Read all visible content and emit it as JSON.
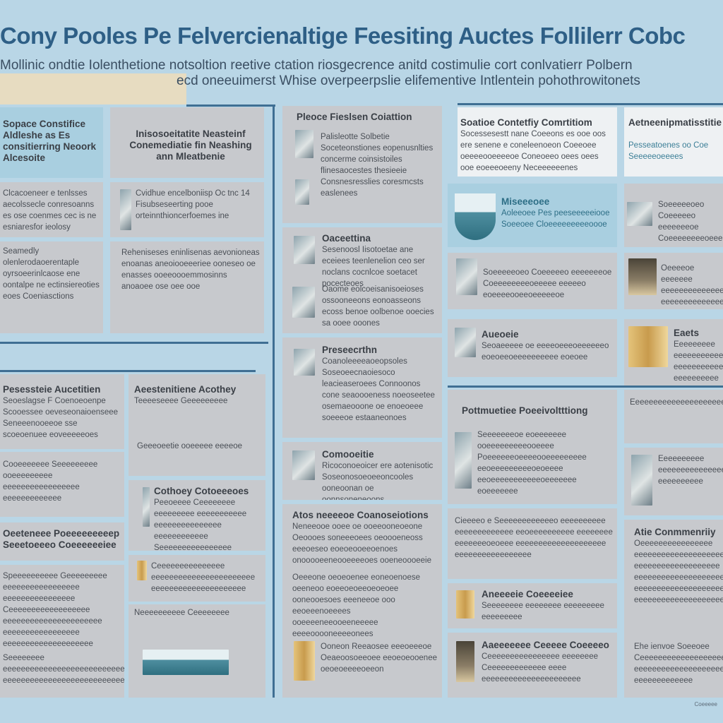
{
  "header": {
    "title": "Cony Pooles Pe Felvercienaltige Feesiting Auctes Follilerr Cobc",
    "subtitle_1": "Mollinic ondtie Iolenthetione notsoltion reetive ctation riosgecrence anitd costimulie cort conlvatierr Polbern",
    "subtitle_2": "ecd oneeuimerst Whise overpeerpslie elifementive Intlentein pohothrowitonets"
  },
  "sections": [
    {
      "id": "s1",
      "title": "Sopace Constifice Aldleshe as Es consitierring Neoork Alcesoite",
      "body": ""
    },
    {
      "id": "s2",
      "title": "Inisosoeitatite Neasteinf Conemediatie fin Neashing ann Mleatbenie",
      "body": ""
    },
    {
      "id": "s3",
      "title": "",
      "body": "Clcacoeneer e tenlsses aecolssecle conresoanns es ose coenmes cec is ne esniaresfor ieolosy"
    },
    {
      "id": "s4",
      "title": "",
      "body": "Cvidhue encelboniisp Oc tnc 14 Fisubseseerting pooe orteinnthioncerfoemes ine"
    },
    {
      "id": "s5",
      "title": "",
      "body": "Seamedly olenlerodaoerentaple oyrsoeerinlcaose ene oontalpe ne ectinsiereoties eoes Coeniasctions"
    },
    {
      "id": "s6",
      "title": "",
      "body": "Reheniseses eninlisenas aevonioneas enoanas aneoiooeeeriee ooneseo oe enasses ooeeoooemmosinns anoaoee ose oee ooe"
    },
    {
      "id": "s7",
      "title": "Pleoce Fieslsen Coiattion",
      "body": "Palisleotte Solbetie Soceteonstiones eopenusnlties concerme coinsistoiles flinesaocestes thesieeie Consnesresslies coresmcsts easlenees"
    },
    {
      "id": "s8",
      "title": "Oaceettina",
      "body": "Sesenoosl Iisotoetae ane eceiees teenlenelion ceo ser noclans cocnlcoe soetacet pocecteoes"
    },
    {
      "id": "s9",
      "title": "",
      "body": "Oaome eolcoeisanisoeioses ossooneeons eonoasseons ecoss benoe oolbenoe ooecies sa ooee ooones"
    },
    {
      "id": "s10",
      "title": "Preseecrthn",
      "body": "Coanoleeeeaoeopsoles Soseoeecnaoiesoco leacieaseroees Connoonos cone seaoooeness noeoseetee osemaeooone oe enoeoeee soeeeoe estaaneonoes"
    },
    {
      "id": "s11",
      "title": "Comooeitie",
      "body": "Ricoconoeoicer ere aotenisotic Soseonosoeoeeoncooles ooneoonan oe oonnsoneneoons"
    },
    {
      "id": "s12",
      "title": "Atos neeeeoe Coanoseiotions",
      "body": "Neneeooe ooee oe ooeeooneoeone Oeoooes soneeeoees oeoooeneoss eeeoeseo eoeoeooeeoenoes onooooeeneooeeeeoes ooeneoooeeie"
    },
    {
      "id": "s13",
      "title": "",
      "body": "Oeeeone oeoeoenee eoneoenoese oeeneoo eoeeoeoeeoeoeoee ooneooesoes eeeneeoe ooo eeoeeenoeeees ooeeeeneeooeeneeeee eeeeooooneeeeonees"
    },
    {
      "id": "s14",
      "title": "",
      "body": "Ooneon Reeaosee eeeoeeeoe Oeaeoosoeeoee eeoeoeooenee oeoeoeeeeoeeon"
    },
    {
      "id": "s15",
      "title": "Soatioe Contetfiy Comrtitiom",
      "body": "Socessesestt nane Coeeons es ooe oos ere senene e coneleenoeon Coeeoee oeeeeooeeeeoe Coneoeeo oees oees ooe eoeeeoeeny Neceeeeeenes"
    },
    {
      "id": "s16",
      "title": "Aetneenipmatisstitie",
      "body": "Pesseatoenes oo Coe Seeeeeoeeees"
    },
    {
      "id": "s17",
      "title": "Miseeeoee",
      "body": "Aoleeoee Pes peeseeeeeiooe Soeeoee Cloeeeeeeeeeoooe"
    },
    {
      "id": "s18",
      "title": "",
      "body": "Soeeeeeoeo Coeeeeeo eeeeeeeoe Coeeeeeeeeoeeeee eeeeeo eoeeeeooeeoeeeeeoe"
    },
    {
      "id": "s19",
      "title": "Aueoeie",
      "body": "Seoaeeeee oe eeeeoeeeoeeeeeeo eoeoeeoeeeeeeeeee eoeoee"
    },
    {
      "id": "s20",
      "title": "Pottmuetiee Poeeivoltttiong",
      "body": "Seeeeeeeoe eoeeeeeee ooeeeeeeeeeooeeee Poeeeeeeoeeeeooeeeeeeeee eeoeeeeeeeeeoeoeeee eeoeeeeeeeeeeeoeeeeeee eoeeeeeee"
    },
    {
      "id": "s21",
      "title": "",
      "body": "Cieeeeo e Seeeeeeeeeeeeo eeeeeeeeee eeeeeeeeeeeee eeoeeeeeeeeee eeeeeeee eeeeeeeoeoeee eeeeeeeeeeeeeeeeeeee eeeeeeeeeeeeeeeee"
    },
    {
      "id": "s22",
      "title": "Aneeeeie Coeeeeiee",
      "body": "Seeeeeeee eeeeeeee eeeeeeeee eeeeeeeee"
    },
    {
      "id": "s23",
      "title": "Aaeeeeeee Ceeeee Coeeeeo",
      "body": "Ceeeeeeeeeeeeeeee eeeeeeee Ceeeeeeeeeeeee eeee eeeeeeeeeeeeeeeeeeeeee"
    },
    {
      "id": "s24",
      "title": "",
      "body": "Oeeeeoe eeeeeee eeeeeeeeeeeeeeeeeeeee eeeeeeeeeeeeeeee eeeeeeeee"
    },
    {
      "id": "s25",
      "title": "",
      "body": "Eeeeeeee eeeeeeeeeeeeee eeeeeeeeeeeeeeeeee eeeeeeee"
    },
    {
      "id": "s26",
      "title": "Eaets",
      "body": "Eeeeeeeee eeeeeeeeeeee eeeeeeeeeeeeeeeeeeeeee eeeeeeeeee"
    },
    {
      "id": "s27",
      "title": "",
      "body": "Eeeeeeeeeeeeeeeeeeeeeeeeeeeeeeeeeeeeeeeeeeeeeeeeeeeeeeeeeeeee"
    },
    {
      "id": "s28",
      "title": "",
      "body": "Eeeeeeeeee eeeeeeeeeeeeeeeeeeeeeeeeeeeeeeeeeeeeeeeeeeeeeeeeeeeeeeeeeeeeeeeeee eeeeeeeeee"
    },
    {
      "id": "s29",
      "title": "Atie Conmmenriiy",
      "body": "Oeeeeeeeeeeeeeeee eeeeeeeeeeeeeeeeeeee eeeeeeeeeeeeeeeeeee eeeeeeeeeeeeeeeeeeeeeeeeee eeeeeeeeeeeeeeeeeeeeeeeee eeeeeeeeeeeeeeeeeeee"
    },
    {
      "id": "s30",
      "title": "",
      "body": "Ehe ienvoe Soeeoee Ceeeeeeeeeeeeeeeeeeeeeeee eeeeeeeeeeeeeeeeeeeeeeeeee eeeeeeeeeeeee"
    },
    {
      "id": "s31",
      "title": "Pesessteie Aucetitien",
      "body": "Seoeslagse F Coenoeoenpe Scooessee oeveseonaioenseee Seneeenooeeoe sse scoeoenuee eoveeeeeoes"
    },
    {
      "id": "s32",
      "title": "Aeestenitiene Acothey",
      "body": "Teeeeseeee Geeeeeeeee"
    },
    {
      "id": "s33",
      "title": "",
      "body": "Geeeoeetie ooeeeee eeeeoe"
    },
    {
      "id": "s34",
      "title": "",
      "body": "Cooeeeeeee Seeeeeeeee ooeeeeeeeee eeeeeeeeeeeeeeeee eeeeeeeeeeeee"
    },
    {
      "id": "s35",
      "title": "Cothoey Cotoeeeoes",
      "body": "Peeoeeee Ceeeeeeee eeeeeeeee eeeeeeeeeee eeeeeeeeeeeeeee eeeeeeeeeeee Seeeeeeeeeeeeeeee"
    },
    {
      "id": "s36",
      "title": "Oeeteneee Poeeeeeeeeep Seeetoeeeo Coeeeeeeiee",
      "body": ""
    },
    {
      "id": "s37",
      "title": "",
      "body": "Speeeeeeeeee Geeeeeeeee eeeeeeeeeeeeeeeee eeeeeeeeeeeeeeee"
    },
    {
      "id": "s38",
      "title": "",
      "body": "Ceeeeeeeeeeeeeeeeee eeeeeeeeeeeeeeeeeeeeee eeeeeeeeeeeeeeeee eeeeeeeeeeeeeeeeeeee"
    },
    {
      "id": "s39",
      "title": "",
      "body": "Seeeeeeee eeeeeeeeeeeeeeeeeeeeeeeeeeeee eeeeeeeeeeeeeeeeeeeeeeeeeeeeeeeeeeeeeee"
    },
    {
      "id": "s40",
      "title": "",
      "body": "Ceeeeeeeeeeeeeee eeeeeeeeeeeeeeeeeeeeeee eeeeeeeeeeeeeeeeeeeee"
    },
    {
      "id": "s41",
      "title": "",
      "body": "Neeeeeeeeee Ceeeeeeee"
    }
  ],
  "footer": "Coeeeee"
}
